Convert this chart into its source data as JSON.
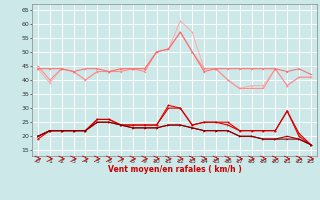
{
  "x": [
    0,
    1,
    2,
    3,
    4,
    5,
    6,
    7,
    8,
    9,
    10,
    11,
    12,
    13,
    14,
    15,
    16,
    17,
    18,
    19,
    20,
    21,
    22,
    23
  ],
  "line1": [
    44,
    39,
    44,
    43,
    40,
    43,
    43,
    44,
    44,
    44,
    50,
    51,
    61,
    57,
    44,
    44,
    40,
    37,
    38,
    38,
    44,
    38,
    41,
    41
  ],
  "line2": [
    45,
    40,
    44,
    43,
    40,
    43,
    43,
    43,
    44,
    43,
    50,
    51,
    57,
    50,
    44,
    44,
    40,
    37,
    37,
    37,
    44,
    38,
    41,
    41
  ],
  "line3": [
    44,
    44,
    44,
    43,
    44,
    44,
    43,
    44,
    44,
    44,
    50,
    51,
    57,
    50,
    43,
    44,
    44,
    44,
    44,
    44,
    44,
    43,
    44,
    42
  ],
  "line4": [
    19,
    22,
    22,
    22,
    22,
    26,
    26,
    24,
    24,
    24,
    24,
    31,
    30,
    24,
    25,
    25,
    25,
    22,
    22,
    22,
    22,
    29,
    20,
    17
  ],
  "line5": [
    20,
    22,
    22,
    22,
    22,
    26,
    26,
    24,
    24,
    24,
    24,
    30,
    30,
    24,
    25,
    25,
    24,
    22,
    22,
    22,
    22,
    29,
    21,
    17
  ],
  "line6": [
    20,
    22,
    22,
    22,
    22,
    25,
    25,
    24,
    23,
    23,
    23,
    24,
    24,
    23,
    22,
    22,
    22,
    20,
    20,
    19,
    19,
    20,
    19,
    17
  ],
  "line7": [
    20,
    22,
    22,
    22,
    22,
    25,
    25,
    24,
    23,
    23,
    23,
    24,
    24,
    23,
    22,
    22,
    22,
    20,
    20,
    19,
    19,
    19,
    19,
    17
  ],
  "color1": "#ffaaaa",
  "color2": "#ff8888",
  "color3": "#ff6666",
  "color4": "#ee0000",
  "color5": "#cc0000",
  "color6": "#aa0000",
  "color7": "#880000",
  "bg_color": "#cce8e8",
  "grid_color": "#ffffff",
  "xlabel": "Vent moyen/en rafales ( km/h )",
  "ylabel_values": [
    15,
    20,
    25,
    30,
    35,
    40,
    45,
    50,
    55,
    60,
    65
  ],
  "ylim": [
    13,
    67
  ],
  "xlim": [
    -0.5,
    23.5
  ]
}
